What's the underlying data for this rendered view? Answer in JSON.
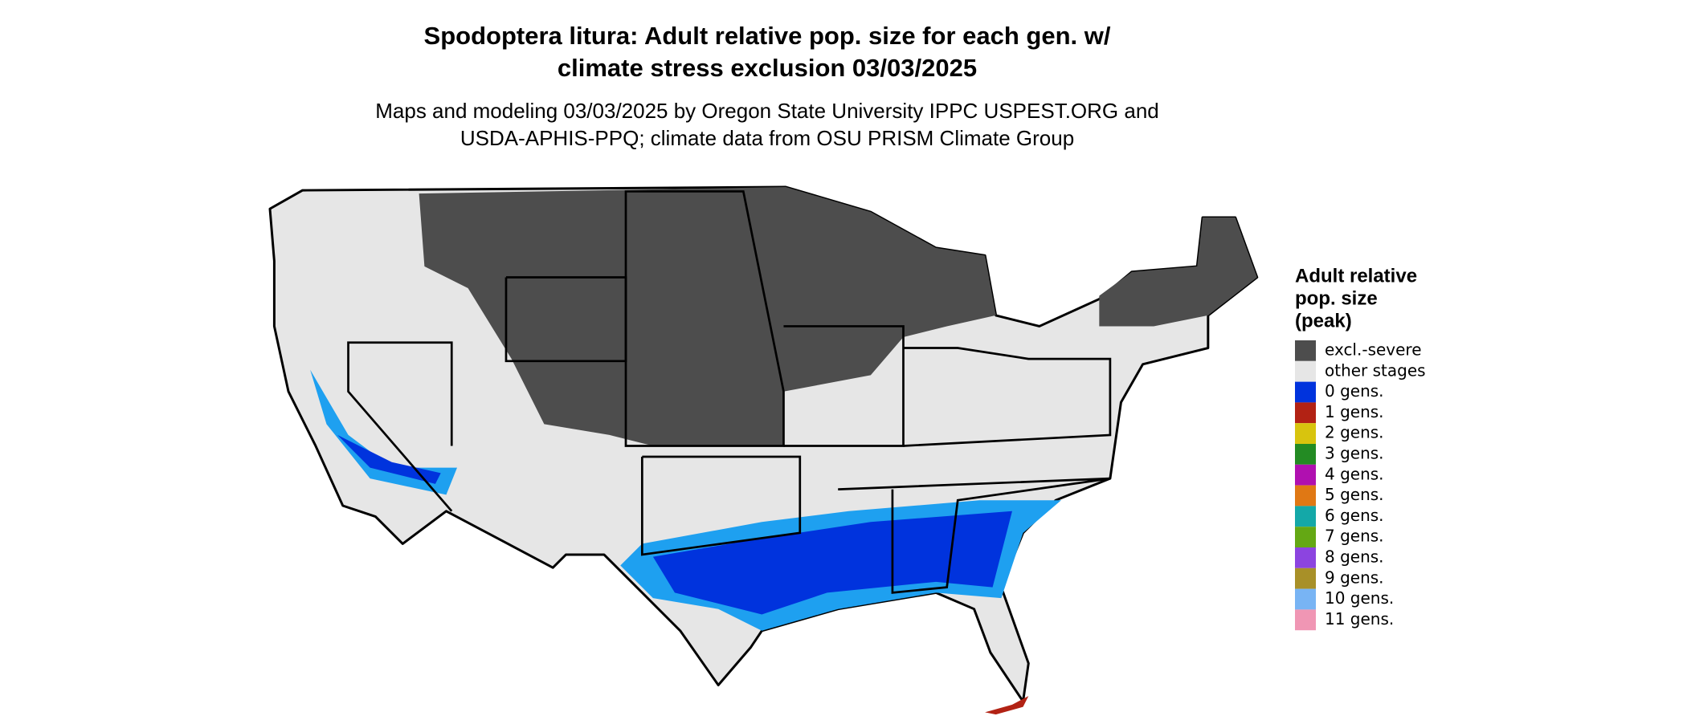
{
  "header": {
    "title_lines": [
      "Spodoptera litura: Adult relative pop. size for each gen. w/",
      "climate stress exclusion 03/03/2025"
    ],
    "subtitle_lines": [
      "Maps and modeling 03/03/2025 by Oregon State University IPPC USPEST.ORG and",
      "USDA-APHIS-PPQ; climate data from OSU PRISM Climate Group"
    ]
  },
  "legend": {
    "title_lines": [
      "Adult relative",
      "pop. size",
      "(peak)"
    ],
    "items": [
      {
        "label": "excl.-severe",
        "color": "#4d4d4d"
      },
      {
        "label": "other stages",
        "color": "#e6e6e6"
      },
      {
        "label": "0 gens.",
        "color": "#0033dd"
      },
      {
        "label": "1 gens.",
        "color": "#b22214"
      },
      {
        "label": "2 gens.",
        "color": "#d8c40e"
      },
      {
        "label": "3 gens.",
        "color": "#238b23"
      },
      {
        "label": "4 gens.",
        "color": "#b010b0"
      },
      {
        "label": "5 gens.",
        "color": "#e07814"
      },
      {
        "label": "6 gens.",
        "color": "#14a8a8"
      },
      {
        "label": "7 gens.",
        "color": "#64a814"
      },
      {
        "label": "8 gens.",
        "color": "#8c44e0"
      },
      {
        "label": "9 gens.",
        "color": "#a89028"
      },
      {
        "label": "10 gens.",
        "color": "#78b4f4"
      },
      {
        "label": "11 gens.",
        "color": "#f096b4"
      }
    ]
  }
}
